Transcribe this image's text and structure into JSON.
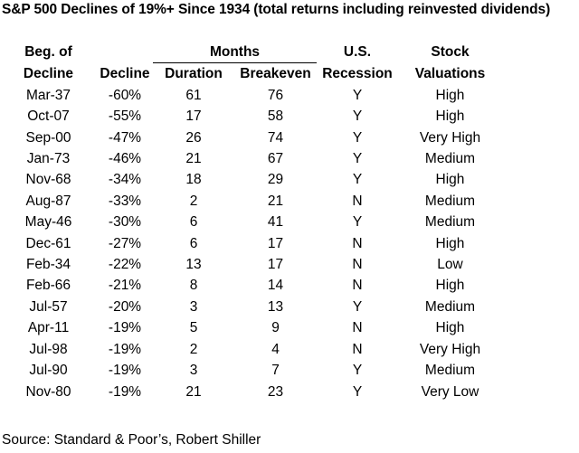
{
  "title": "S&P 500 Declines of 19%+ Since 1934 (total returns including reinvested dividends)",
  "headers": {
    "beg_line1": "Beg. of",
    "beg_line2": "Decline",
    "decline": "Decline",
    "months_group": "Months",
    "duration": "Duration",
    "breakeven": "Breakeven",
    "recession_line1": "U.S.",
    "recession_line2": "Recession",
    "valuation_line1": "Stock",
    "valuation_line2": "Valuations"
  },
  "rows": [
    {
      "beg": "Mar-37",
      "decline": "-60%",
      "duration": "61",
      "breakeven": "76",
      "recession": "Y",
      "valuation": "High"
    },
    {
      "beg": "Oct-07",
      "decline": "-55%",
      "duration": "17",
      "breakeven": "58",
      "recession": "Y",
      "valuation": "High"
    },
    {
      "beg": "Sep-00",
      "decline": "-47%",
      "duration": "26",
      "breakeven": "74",
      "recession": "Y",
      "valuation": "Very High"
    },
    {
      "beg": "Jan-73",
      "decline": "-46%",
      "duration": "21",
      "breakeven": "67",
      "recession": "Y",
      "valuation": "Medium"
    },
    {
      "beg": "Nov-68",
      "decline": "-34%",
      "duration": "18",
      "breakeven": "29",
      "recession": "Y",
      "valuation": "High"
    },
    {
      "beg": "Aug-87",
      "decline": "-33%",
      "duration": "2",
      "breakeven": "21",
      "recession": "N",
      "valuation": "Medium"
    },
    {
      "beg": "May-46",
      "decline": "-30%",
      "duration": "6",
      "breakeven": "41",
      "recession": "Y",
      "valuation": "Medium"
    },
    {
      "beg": "Dec-61",
      "decline": "-27%",
      "duration": "6",
      "breakeven": "17",
      "recession": "N",
      "valuation": "High"
    },
    {
      "beg": "Feb-34",
      "decline": "-22%",
      "duration": "13",
      "breakeven": "17",
      "recession": "N",
      "valuation": "Low"
    },
    {
      "beg": "Feb-66",
      "decline": "-21%",
      "duration": "8",
      "breakeven": "14",
      "recession": "N",
      "valuation": "High"
    },
    {
      "beg": "Jul-57",
      "decline": "-20%",
      "duration": "3",
      "breakeven": "13",
      "recession": "Y",
      "valuation": "Medium"
    },
    {
      "beg": "Apr-11",
      "decline": "-19%",
      "duration": "5",
      "breakeven": "9",
      "recession": "N",
      "valuation": "High"
    },
    {
      "beg": "Jul-98",
      "decline": "-19%",
      "duration": "2",
      "breakeven": "4",
      "recession": "N",
      "valuation": "Very High"
    },
    {
      "beg": "Jul-90",
      "decline": "-19%",
      "duration": "3",
      "breakeven": "7",
      "recession": "Y",
      "valuation": "Medium"
    },
    {
      "beg": "Nov-80",
      "decline": "-19%",
      "duration": "21",
      "breakeven": "23",
      "recession": "Y",
      "valuation": "Very Low"
    }
  ],
  "source": "Source: Standard & Poor’s, Robert Shiller"
}
